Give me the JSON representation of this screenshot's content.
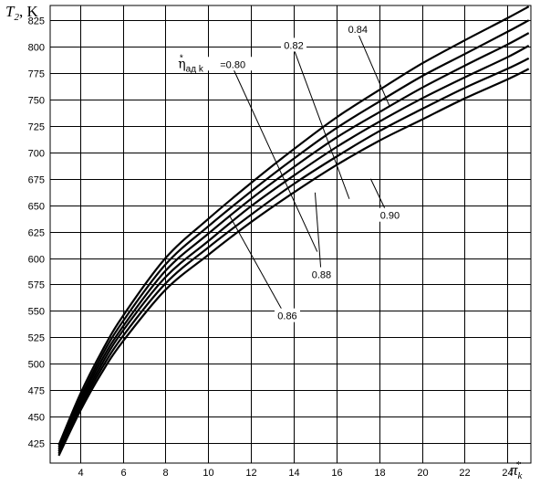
{
  "chart_data": {
    "type": "line",
    "title": "",
    "ylabel_main": "T",
    "ylabel_sub": "2",
    "ylabel_unit": ", K",
    "xlabel_main": "π",
    "xlabel_sub": "k",
    "xlabel_sup": "*",
    "xlim": [
      2.6,
      25.1
    ],
    "ylim": [
      406,
      839
    ],
    "x_ticks": [
      4,
      6,
      8,
      10,
      12,
      14,
      16,
      18,
      20,
      22,
      24
    ],
    "y_ticks": [
      425,
      450,
      475,
      500,
      525,
      550,
      575,
      600,
      625,
      650,
      675,
      700,
      725,
      750,
      775,
      800,
      825
    ],
    "grid": true,
    "series": [
      {
        "name": "0.80",
        "x": [
          3,
          4,
          5,
          6,
          8,
          10,
          12,
          14,
          16,
          18,
          20,
          22,
          24,
          25
        ],
        "y": [
          423,
          471,
          511,
          545,
          600,
          637,
          671,
          703,
          733,
          759,
          784,
          806,
          827,
          838
        ]
      },
      {
        "name": "0.82",
        "x": [
          3,
          4,
          5,
          6,
          8,
          10,
          12,
          14,
          16,
          18,
          20,
          22,
          24,
          25
        ],
        "y": [
          421,
          467,
          507,
          540,
          594,
          630,
          663,
          694,
          723,
          748,
          772,
          793,
          814,
          825
        ]
      },
      {
        "name": "0.84",
        "x": [
          3,
          4,
          5,
          6,
          8,
          10,
          12,
          14,
          16,
          18,
          20,
          22,
          24,
          25
        ],
        "y": [
          419,
          464,
          503,
          535,
          588,
          623,
          656,
          686,
          714,
          738,
          761,
          782,
          802,
          813
        ]
      },
      {
        "name": "0.86",
        "x": [
          3,
          4,
          5,
          6,
          8,
          10,
          12,
          14,
          16,
          18,
          20,
          22,
          24,
          25
        ],
        "y": [
          417,
          461,
          499,
          531,
          582,
          616,
          649,
          678,
          705,
          729,
          751,
          771,
          790,
          801
        ]
      },
      {
        "name": "0.88",
        "x": [
          3,
          4,
          5,
          6,
          8,
          10,
          12,
          14,
          16,
          18,
          20,
          22,
          24,
          25
        ],
        "y": [
          415,
          458,
          495,
          526,
          576,
          610,
          641,
          670,
          696,
          720,
          741,
          761,
          779,
          789
        ]
      },
      {
        "name": "0.90",
        "x": [
          3,
          4,
          5,
          6,
          8,
          10,
          12,
          14,
          16,
          18,
          20,
          22,
          24,
          25
        ],
        "y": [
          413,
          455,
          491,
          521,
          570,
          603,
          634,
          662,
          688,
          711,
          731,
          751,
          769,
          779
        ]
      }
    ],
    "annotations": [
      {
        "text": "0.80",
        "prefix": "η",
        "prefix_sub": "ад k",
        "prefix_sup": "*",
        "label_x": 11.15,
        "label_y": 780,
        "target_x": 15.1,
        "target_y": 606
      },
      {
        "text": "0.82",
        "label_x": 14.0,
        "label_y": 798,
        "target_x": 16.6,
        "target_y": 656
      },
      {
        "text": "0.84",
        "label_x": 17.0,
        "label_y": 813,
        "target_x": 18.5,
        "target_y": 743
      },
      {
        "text": "0.86",
        "label_x": 13.7,
        "label_y": 542,
        "target_x": 11.0,
        "target_y": 640
      },
      {
        "text": "0.88",
        "label_x": 15.3,
        "label_y": 581,
        "target_x": 15.0,
        "target_y": 662
      },
      {
        "text": "0.90",
        "label_x": 18.5,
        "label_y": 637,
        "target_x": 17.6,
        "target_y": 675
      }
    ]
  }
}
